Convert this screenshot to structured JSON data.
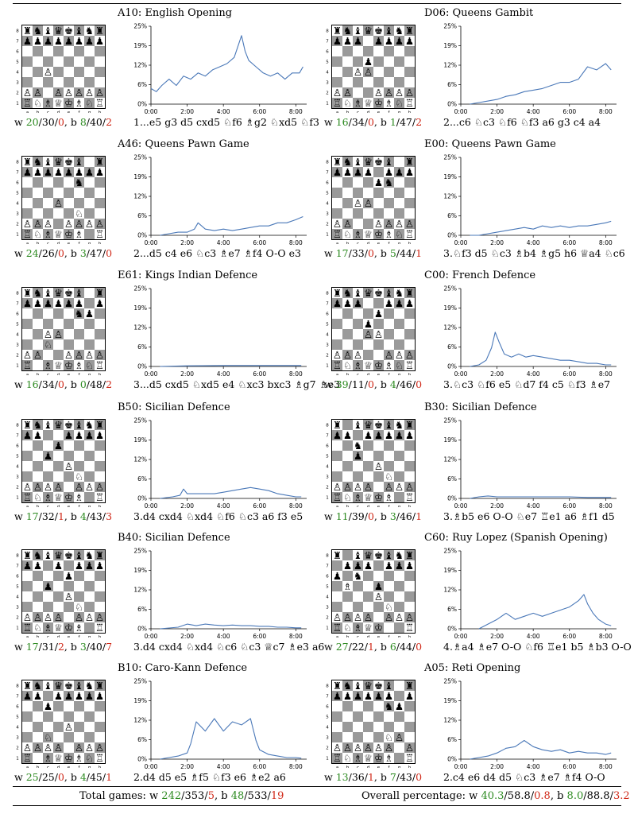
{
  "panels": [
    {
      "code": "A10",
      "name": "English Opening",
      "title": "A10: English Opening",
      "stats": {
        "w_win": "20",
        "w_draw": "30",
        "w_loss": "0",
        "b_win": "8",
        "b_draw": "40",
        "b_loss": "2"
      },
      "moves": "1...e5 g3 d5 cxd5 ♘f6 ♗g2 ♘xd5 ♘f3",
      "position": [
        "rnbqkbnr",
        "pppppppp",
        "........",
        "........",
        "..P.....",
        "........",
        "PP.PPPPP",
        "RNBQKBNR"
      ]
    },
    {
      "code": "D06",
      "name": "Queens Gambit",
      "title": "D06: Queens Gambit",
      "stats": {
        "w_win": "16",
        "w_draw": "34",
        "w_loss": "0",
        "b_win": "1",
        "b_draw": "47",
        "b_loss": "2"
      },
      "moves": "2...c6 ♘c3 ♘f6 ♘f3 a6 g3 c4 a4",
      "position": [
        "rnbqkbnr",
        "ppp.pppp",
        "........",
        "...p....",
        "..PP....",
        "........",
        "PP..PPPP",
        "RNBQKBNR"
      ]
    },
    {
      "code": "A46",
      "name": "Queens Pawn Game",
      "title": "A46: Queens Pawn Game",
      "stats": {
        "w_win": "24",
        "w_draw": "26",
        "w_loss": "0",
        "b_win": "3",
        "b_draw": "47",
        "b_loss": "0"
      },
      "moves": "2...d5 c4 e6 ♘c3 ♗e7 ♗f4 O-O e3",
      "position": [
        "rnbqkb.r",
        "pppppppp",
        ".....n..",
        "........",
        "...P....",
        ".....N..",
        "PPP.PPPP",
        "RNBQKB.R"
      ]
    },
    {
      "code": "E00",
      "name": "Queens Pawn Game",
      "title": "E00: Queens Pawn Game",
      "stats": {
        "w_win": "17",
        "w_draw": "33",
        "w_loss": "0",
        "b_win": "5",
        "b_draw": "44",
        "b_loss": "1"
      },
      "moves": "3.♘f3 d5 ♘c3 ♗b4 ♗g5 h6 ♕a4 ♘c6",
      "position": [
        "rnbqkb.r",
        "pppp.ppp",
        "....pn..",
        "........",
        "..PP....",
        "........",
        "PP..PPPP",
        "RNBQKBNR"
      ]
    },
    {
      "code": "E61",
      "name": "Kings Indian Defence",
      "title": "E61: Kings Indian Defence",
      "stats": {
        "w_win": "16",
        "w_draw": "34",
        "w_loss": "0",
        "b_win": "0",
        "b_draw": "48",
        "b_loss": "2"
      },
      "moves": "3...d5 cxd5 ♘xd5 e4 ♘xc3 bxc3 ♗g7 ♗e3",
      "position": [
        "rnbqkb.r",
        "pppppp.p",
        ".....np.",
        "........",
        "..PP....",
        "..N.....",
        "PP..PPPP",
        "R.BQKBNR"
      ]
    },
    {
      "code": "C00",
      "name": "French Defence",
      "title": "C00: French Defence",
      "stats": {
        "w_win": "39",
        "w_draw": "11",
        "w_loss": "0",
        "b_win": "4",
        "b_draw": "46",
        "b_loss": "0"
      },
      "moves": "3.♘c3 ♘f6 e5 ♘d7 f4 c5 ♘f3 ♗e7",
      "position": [
        "rnbqkbnr",
        "ppp..ppp",
        "....p...",
        "...p....",
        "...PP...",
        "........",
        "PPP..PPP",
        "RNBQKBNR"
      ]
    },
    {
      "code": "B50",
      "name": "Sicilian Defence",
      "title": "B50: Sicilian Defence",
      "stats": {
        "w_win": "17",
        "w_draw": "32",
        "w_loss": "1",
        "b_win": "4",
        "b_draw": "43",
        "b_loss": "3"
      },
      "moves": "3.d4 cxd4 ♘xd4 ♘f6 ♘c3 a6 f3 e5",
      "position": [
        "rnbqkbnr",
        "pp..pppp",
        "...p....",
        "..p.....",
        "....P...",
        ".....N..",
        "PPPP.PPP",
        "RNBQKB.R"
      ]
    },
    {
      "code": "B30",
      "name": "Sicilian Defence",
      "title": "B30: Sicilian Defence",
      "stats": {
        "w_win": "11",
        "w_draw": "39",
        "w_loss": "0",
        "b_win": "3",
        "b_draw": "46",
        "b_loss": "1"
      },
      "moves": "3.♗b5 e6 O-O ♘e7 ♖e1 a6 ♗f1 d5",
      "position": [
        "r.bqkbnr",
        "pp.ppppp",
        "..n.....",
        "..p.....",
        "....P...",
        ".....N..",
        "PPPP.PPP",
        "RNBQKB.R"
      ]
    },
    {
      "code": "B40",
      "name": "Sicilian Defence",
      "title": "B40: Sicilian Defence",
      "stats": {
        "w_win": "17",
        "w_draw": "31",
        "w_loss": "2",
        "b_win": "3",
        "b_draw": "40",
        "b_loss": "7"
      },
      "moves": "3.d4 cxd4 ♘xd4 ♘c6 ♘c3 ♕c7 ♗e3 a6",
      "position": [
        "rnbqkbnr",
        "pp.p.ppp",
        "....p...",
        "..p.....",
        "....P...",
        ".....N..",
        "PPPP.PPP",
        "RNBQKB.R"
      ]
    },
    {
      "code": "C60",
      "name": "Ruy Lopez (Spanish Opening)",
      "title": "C60: Ruy Lopez (Spanish Opening)",
      "stats": {
        "w_win": "27",
        "w_draw": "22",
        "w_loss": "1",
        "b_win": "6",
        "b_draw": "44",
        "b_loss": "0"
      },
      "moves": "4.♗a4 ♗e7 O-O ♘f6 ♖e1 b5 ♗b3 O-O",
      "position": [
        "r.bqkbnr",
        ".ppp.ppp",
        "p.n.....",
        ".B..p...",
        "....P...",
        ".....N..",
        "PPPP.PPP",
        "RNBQK..R"
      ]
    },
    {
      "code": "B10",
      "name": "Caro-Kann Defence",
      "title": "B10: Caro-Kann Defence",
      "stats": {
        "w_win": "25",
        "w_draw": "25",
        "w_loss": "0",
        "b_win": "4",
        "b_draw": "45",
        "b_loss": "1"
      },
      "moves": "2.d4 d5 e5 ♗f5 ♘f3 e6 ♗e2 a6",
      "position": [
        "rnbqkbnr",
        "pp.ppppp",
        "..p.....",
        "........",
        "....P...",
        "..N.....",
        "PPPP.PPP",
        "R.BQKBNR"
      ]
    },
    {
      "code": "A05",
      "name": "Reti Opening",
      "title": "A05: Reti Opening",
      "stats": {
        "w_win": "13",
        "w_draw": "36",
        "w_loss": "1",
        "b_win": "7",
        "b_draw": "43",
        "b_loss": "0"
      },
      "moves": "2.c4 e6 d4 d5 ♘c3 ♗e7 ♗f4 O-O",
      "position": [
        "rnbqkb.r",
        "pppppp.p",
        ".....np.",
        "........",
        "........",
        ".....NP.",
        "PPPPPP.P",
        "RNBQKB.R"
      ]
    }
  ],
  "board_files": [
    "a",
    "b",
    "c",
    "d",
    "e",
    "f",
    "g",
    "h"
  ],
  "board_ranks": [
    "8",
    "7",
    "6",
    "5",
    "4",
    "3",
    "2",
    "1"
  ],
  "footer": {
    "total_label": "Total games: w ",
    "total": {
      "w_win": "242",
      "w_draw": "353",
      "w_loss": "5",
      "b_win": "48",
      "b_draw": "533",
      "b_loss": "19"
    },
    "pct_label": "Overall percentage: w ",
    "pct": {
      "w_win": "40.3",
      "w_draw": "58.8",
      "w_loss": "0.8",
      "b_win": "8.0",
      "b_draw": "88.8",
      "b_loss": "3.2"
    }
  },
  "colors": {
    "line": "#4a78b8",
    "win": "#2e8b22",
    "loss": "#d02818",
    "dark_square": "#9a9a9a",
    "light_square": "#ffffff"
  },
  "chart_data": [
    {
      "type": "line",
      "title": "A10: English Opening",
      "x_ticks": [
        "0:00",
        "2:00",
        "4:00",
        "6:00",
        "8:00"
      ],
      "y_ticks": [
        "0%",
        "6%",
        "12%",
        "19%",
        "25%"
      ],
      "xlim": [
        0,
        8.6
      ],
      "ylim": [
        0,
        25
      ],
      "x": [
        0,
        0.3,
        0.6,
        1,
        1.4,
        1.8,
        2.2,
        2.6,
        3,
        3.4,
        3.8,
        4.2,
        4.6,
        5,
        5.2,
        5.4,
        5.8,
        6.2,
        6.6,
        7,
        7.4,
        7.8,
        8.2,
        8.4
      ],
      "y": [
        5,
        4,
        6,
        8,
        6,
        9,
        8,
        10,
        9,
        11,
        12,
        13,
        15,
        22,
        17,
        14,
        12,
        10,
        9,
        10,
        8,
        10,
        10,
        12
      ]
    },
    {
      "type": "line",
      "title": "D06: Queens Gambit",
      "x_ticks": [
        "0:00",
        "2:00",
        "4:00",
        "6:00",
        "8:00"
      ],
      "y_ticks": [
        "0%",
        "6%",
        "12%",
        "19%",
        "25%"
      ],
      "xlim": [
        0,
        8.6
      ],
      "ylim": [
        0,
        25
      ],
      "x": [
        0.5,
        1,
        1.5,
        2,
        2.5,
        3,
        3.5,
        4,
        4.5,
        5,
        5.5,
        6,
        6.5,
        7,
        7.5,
        8,
        8.3
      ],
      "y": [
        0,
        0.5,
        1,
        1.5,
        2.5,
        3,
        4,
        4.5,
        5,
        6,
        7,
        7,
        8,
        12,
        11,
        13,
        11
      ]
    },
    {
      "type": "line",
      "title": "A46: Queens Pawn Game",
      "x_ticks": [
        "0:00",
        "2:00",
        "4:00",
        "6:00",
        "8:00"
      ],
      "y_ticks": [
        "0%",
        "6%",
        "12%",
        "19%",
        "25%"
      ],
      "xlim": [
        0,
        8.6
      ],
      "ylim": [
        0,
        25
      ],
      "x": [
        0.5,
        1,
        1.5,
        2,
        2.4,
        2.6,
        3,
        3.5,
        4,
        4.5,
        5,
        5.5,
        6,
        6.5,
        7,
        7.5,
        8,
        8.4
      ],
      "y": [
        0,
        0.5,
        1,
        1,
        2,
        4,
        2,
        1.5,
        2,
        1.5,
        2,
        2.5,
        3,
        3,
        4,
        4,
        5,
        6
      ]
    },
    {
      "type": "line",
      "title": "E00: Queens Pawn Game",
      "x_ticks": [
        "0:00",
        "2:00",
        "4:00",
        "6:00",
        "8:00"
      ],
      "y_ticks": [
        "0%",
        "6%",
        "12%",
        "19%",
        "25%"
      ],
      "xlim": [
        0,
        8.6
      ],
      "ylim": [
        0,
        25
      ],
      "x": [
        0.5,
        1,
        1.5,
        2,
        2.5,
        3,
        3.5,
        4,
        4.5,
        5,
        5.5,
        6,
        6.5,
        7,
        7.5,
        8,
        8.3
      ],
      "y": [
        0,
        0,
        0.5,
        1,
        1.5,
        2,
        2.5,
        2,
        3,
        2.5,
        3,
        2.5,
        3,
        3,
        3.5,
        4,
        4.5
      ]
    },
    {
      "type": "line",
      "title": "E61: Kings Indian Defence",
      "x_ticks": [
        "0:00",
        "2:00",
        "4:00",
        "6:00",
        "8:00"
      ],
      "y_ticks": [
        "0%",
        "6%",
        "12%",
        "19%",
        "25%"
      ],
      "xlim": [
        0,
        8.6
      ],
      "ylim": [
        0,
        25
      ],
      "x": [
        0.5,
        2,
        4,
        6,
        8.3
      ],
      "y": [
        0,
        0.2,
        0.3,
        0.3,
        0.3
      ]
    },
    {
      "type": "line",
      "title": "C00: French Defence",
      "x_ticks": [
        "0:00",
        "2:00",
        "4:00",
        "6:00",
        "8:00"
      ],
      "y_ticks": [
        "0%",
        "6%",
        "12%",
        "19%",
        "25%"
      ],
      "xlim": [
        0,
        8.6
      ],
      "ylim": [
        0,
        25
      ],
      "x": [
        0.5,
        1,
        1.4,
        1.7,
        1.9,
        2.1,
        2.4,
        2.8,
        3.2,
        3.6,
        4,
        4.5,
        5,
        5.5,
        6,
        6.5,
        7,
        7.5,
        8,
        8.3
      ],
      "y": [
        0,
        0.5,
        2,
        6,
        11,
        8,
        4,
        3,
        4,
        3,
        3.5,
        3,
        2.5,
        2,
        2,
        1.5,
        1,
        1,
        0.5,
        0.5
      ]
    },
    {
      "type": "line",
      "title": "B50: Sicilian Defence",
      "x_ticks": [
        "0:00",
        "2:00",
        "4:00",
        "6:00",
        "8:00"
      ],
      "y_ticks": [
        "0%",
        "6%",
        "12%",
        "19%",
        "25%"
      ],
      "xlim": [
        0,
        8.6
      ],
      "ylim": [
        0,
        25
      ],
      "x": [
        0.5,
        1.2,
        1.6,
        1.8,
        2,
        2.5,
        3,
        3.5,
        4,
        4.5,
        5,
        5.5,
        6,
        6.5,
        7,
        7.5,
        8,
        8.3
      ],
      "y": [
        0,
        0.5,
        1,
        3,
        1.5,
        1.5,
        1.5,
        1.5,
        2,
        2.5,
        3,
        3.5,
        3,
        2.5,
        1.5,
        1,
        0.5,
        0.5
      ]
    },
    {
      "type": "line",
      "title": "B30: Sicilian Defence",
      "x_ticks": [
        "0:00",
        "2:00",
        "4:00",
        "6:00",
        "8:00"
      ],
      "y_ticks": [
        "0%",
        "6%",
        "12%",
        "19%",
        "25%"
      ],
      "xlim": [
        0,
        8.6
      ],
      "ylim": [
        0,
        25
      ],
      "x": [
        0.5,
        1,
        1.5,
        2,
        3,
        4,
        5,
        6,
        7,
        8.3
      ],
      "y": [
        0,
        0.5,
        0.8,
        0.5,
        0.5,
        0.5,
        0.5,
        0.5,
        0.3,
        0.3
      ]
    },
    {
      "type": "line",
      "title": "B40: Sicilian Defence",
      "x_ticks": [
        "0:00",
        "2:00",
        "4:00",
        "6:00",
        "8:00"
      ],
      "y_ticks": [
        "0%",
        "6%",
        "12%",
        "19%",
        "25%"
      ],
      "xlim": [
        0,
        8.6
      ],
      "ylim": [
        0,
        25
      ],
      "x": [
        0.5,
        1.5,
        2,
        2.5,
        3,
        3.5,
        4,
        4.5,
        5,
        5.5,
        6,
        6.5,
        7,
        7.5,
        8,
        8.3
      ],
      "y": [
        0,
        0.5,
        1.5,
        1,
        1.5,
        1.2,
        1,
        1.2,
        1,
        1,
        0.8,
        0.8,
        0.5,
        0.5,
        0.3,
        0.3
      ]
    },
    {
      "type": "line",
      "title": "C60: Ruy Lopez (Spanish Opening)",
      "x_ticks": [
        "0:00",
        "2:00",
        "4:00",
        "6:00",
        "8:00"
      ],
      "y_ticks": [
        "0%",
        "6%",
        "12%",
        "19%",
        "25%"
      ],
      "xlim": [
        0,
        8.6
      ],
      "ylim": [
        0,
        25
      ],
      "x": [
        1,
        1.5,
        2,
        2.5,
        3,
        3.5,
        4,
        4.5,
        5,
        5.5,
        6,
        6.5,
        6.8,
        7,
        7.3,
        7.6,
        8,
        8.3
      ],
      "y": [
        0,
        1.5,
        3,
        5,
        3,
        4,
        5,
        4,
        5,
        6,
        7,
        9,
        11,
        8,
        5,
        3,
        1.5,
        1
      ]
    },
    {
      "type": "line",
      "title": "B10: Caro-Kann Defence",
      "x_ticks": [
        "0:00",
        "2:00",
        "4:00",
        "6:00",
        "8:00"
      ],
      "y_ticks": [
        "0%",
        "6%",
        "12%",
        "19%",
        "25%"
      ],
      "xlim": [
        0,
        8.6
      ],
      "ylim": [
        0,
        25
      ],
      "x": [
        0.5,
        1,
        1.5,
        2,
        2.2,
        2.5,
        3,
        3.5,
        4,
        4.5,
        5,
        5.5,
        5.8,
        6,
        6.5,
        7,
        7.5,
        8,
        8.3
      ],
      "y": [
        0,
        0.5,
        1,
        2,
        5,
        12,
        9,
        13,
        9,
        12,
        11,
        13,
        6,
        3,
        1.5,
        1,
        0.5,
        0.5,
        0.3
      ]
    },
    {
      "type": "line",
      "title": "A05: Reti Opening",
      "x_ticks": [
        "0:00",
        "2:00",
        "4:00",
        "6:00",
        "8:00"
      ],
      "y_ticks": [
        "0%",
        "6%",
        "12%",
        "19%",
        "25%"
      ],
      "xlim": [
        0,
        8.6
      ],
      "ylim": [
        0,
        25
      ],
      "x": [
        0.5,
        1,
        1.5,
        2,
        2.5,
        3,
        3.5,
        4,
        4.5,
        5,
        5.5,
        6,
        6.5,
        7,
        7.5,
        8,
        8.3
      ],
      "y": [
        0,
        0.5,
        1,
        2,
        3.5,
        4,
        6,
        4,
        3,
        2.5,
        3,
        2,
        2.5,
        2,
        2,
        1.5,
        2
      ]
    }
  ]
}
